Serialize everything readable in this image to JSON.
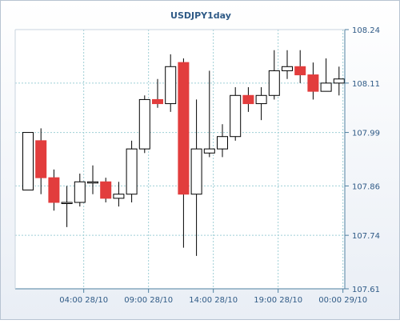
{
  "chart_data": {
    "type": "candlestick",
    "title": "USDJPY1day",
    "xlabel": "",
    "ylabel": "",
    "ylim": [
      107.61,
      108.24
    ],
    "y_ticks": [
      108.24,
      108.11,
      107.99,
      107.86,
      107.74,
      107.61
    ],
    "x_ticks": [
      "04:00 28/10",
      "09:00 28/10",
      "14:00 28/10",
      "19:00 28/10",
      "00:00 29/10"
    ],
    "x_tick_index": [
      4.3,
      9.3,
      14.3,
      19.3,
      24.3
    ],
    "grid": true,
    "colors": {
      "up": "#ffffff",
      "down": "#e23d3d",
      "outline": "#000000",
      "grid": "#9fcfd6",
      "axis": "#4d7fa0",
      "label": "#2f5a86"
    },
    "candles": [
      {
        "o": 107.85,
        "h": 107.99,
        "l": 107.85,
        "c": 107.99
      },
      {
        "o": 107.97,
        "h": 108.0,
        "l": 107.84,
        "c": 107.88
      },
      {
        "o": 107.88,
        "h": 107.9,
        "l": 107.8,
        "c": 107.82
      },
      {
        "o": 107.82,
        "h": 107.86,
        "l": 107.76,
        "c": 107.82
      },
      {
        "o": 107.82,
        "h": 107.89,
        "l": 107.81,
        "c": 107.87
      },
      {
        "o": 107.87,
        "h": 107.91,
        "l": 107.84,
        "c": 107.87
      },
      {
        "o": 107.87,
        "h": 107.88,
        "l": 107.82,
        "c": 107.83
      },
      {
        "o": 107.83,
        "h": 107.87,
        "l": 107.81,
        "c": 107.84
      },
      {
        "o": 107.84,
        "h": 107.97,
        "l": 107.82,
        "c": 107.95
      },
      {
        "o": 107.95,
        "h": 108.08,
        "l": 107.94,
        "c": 108.07
      },
      {
        "o": 108.07,
        "h": 108.12,
        "l": 108.05,
        "c": 108.06
      },
      {
        "o": 108.06,
        "h": 108.18,
        "l": 108.04,
        "c": 108.15
      },
      {
        "o": 108.16,
        "h": 108.17,
        "l": 107.71,
        "c": 107.84
      },
      {
        "o": 107.84,
        "h": 108.07,
        "l": 107.69,
        "c": 107.95
      },
      {
        "o": 107.94,
        "h": 108.14,
        "l": 107.93,
        "c": 107.95
      },
      {
        "o": 107.95,
        "h": 108.01,
        "l": 107.93,
        "c": 107.98
      },
      {
        "o": 107.98,
        "h": 108.1,
        "l": 107.97,
        "c": 108.08
      },
      {
        "o": 108.08,
        "h": 108.1,
        "l": 108.04,
        "c": 108.06
      },
      {
        "o": 108.06,
        "h": 108.1,
        "l": 108.02,
        "c": 108.08
      },
      {
        "o": 108.08,
        "h": 108.19,
        "l": 108.07,
        "c": 108.14
      },
      {
        "o": 108.14,
        "h": 108.19,
        "l": 108.12,
        "c": 108.15
      },
      {
        "o": 108.15,
        "h": 108.19,
        "l": 108.11,
        "c": 108.13
      },
      {
        "o": 108.13,
        "h": 108.16,
        "l": 108.07,
        "c": 108.09
      },
      {
        "o": 108.09,
        "h": 108.17,
        "l": 108.09,
        "c": 108.11
      },
      {
        "o": 108.11,
        "h": 108.15,
        "l": 108.08,
        "c": 108.12
      }
    ]
  }
}
